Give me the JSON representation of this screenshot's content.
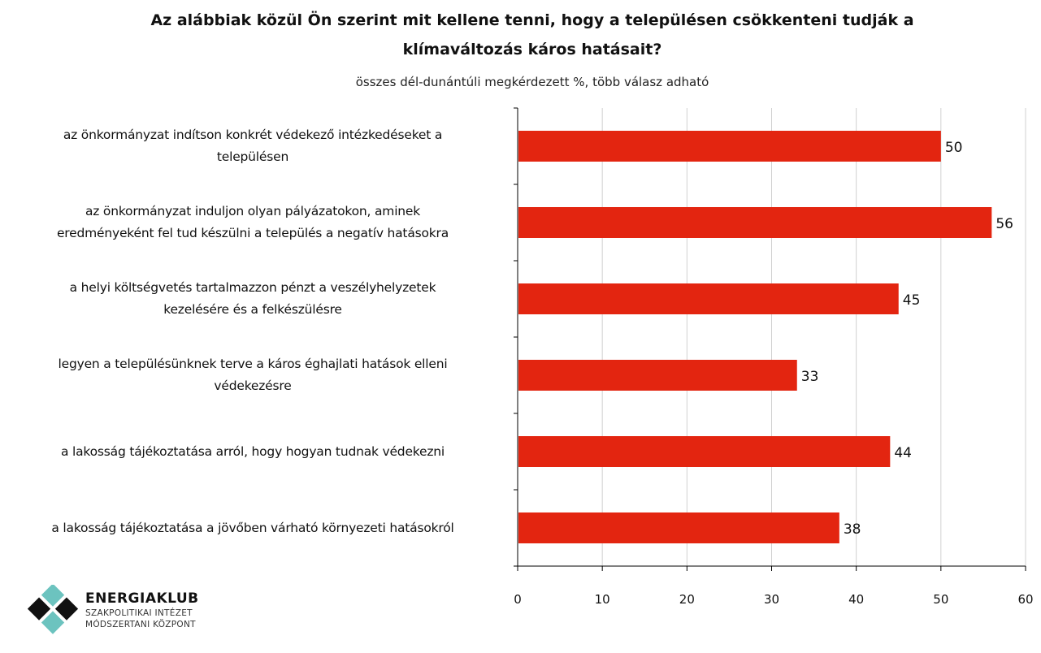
{
  "chart_data": {
    "type": "bar",
    "orientation": "horizontal",
    "title": "Az alábbiak közül Ön szerint mit kellene tenni, hogy a településen csökkenteni tudják a klímaváltozás káros hatásait?",
    "title_lines": [
      "Az alábbiak közül Ön szerint mit kellene tenni, hogy a településen csökkenteni tudják a",
      "klímaváltozás káros hatásait?"
    ],
    "subtitle": "összes dél-dunántúli megkérdezett %, több válasz adható",
    "categories": [
      [
        "az önkormányzat indítson konkrét védekező intézkedéseket a",
        "településen"
      ],
      [
        "az önkormányzat induljon olyan pályázatokon, aminek",
        "eredményeként fel tud készülni a település a negatív hatásokra"
      ],
      [
        "a helyi költségvetés tartalmazzon pénzt a veszélyhelyzetek",
        "kezelésére és a felkészülésre"
      ],
      [
        "legyen a településünknek terve a káros éghajlati hatások elleni",
        "védekezésre"
      ],
      [
        "a lakosság tájékoztatása arról, hogy hogyan tudnak védekezni"
      ],
      [
        "a lakosság tájékoztatása a jövőben várható környezeti hatásokról"
      ]
    ],
    "values": [
      50,
      56,
      45,
      33,
      44,
      38
    ],
    "xlim": [
      0,
      60
    ],
    "xticks": [
      0,
      10,
      20,
      30,
      40,
      50,
      60
    ],
    "grid": true,
    "bar_color": "#e32510",
    "xlabel": "",
    "ylabel": ""
  },
  "logo": {
    "name": "ENERGIAKLUB",
    "line1": "SZAKPOLITIKAI INTÉZET",
    "line2": "MÓDSZERTANI KÖZPONT"
  }
}
